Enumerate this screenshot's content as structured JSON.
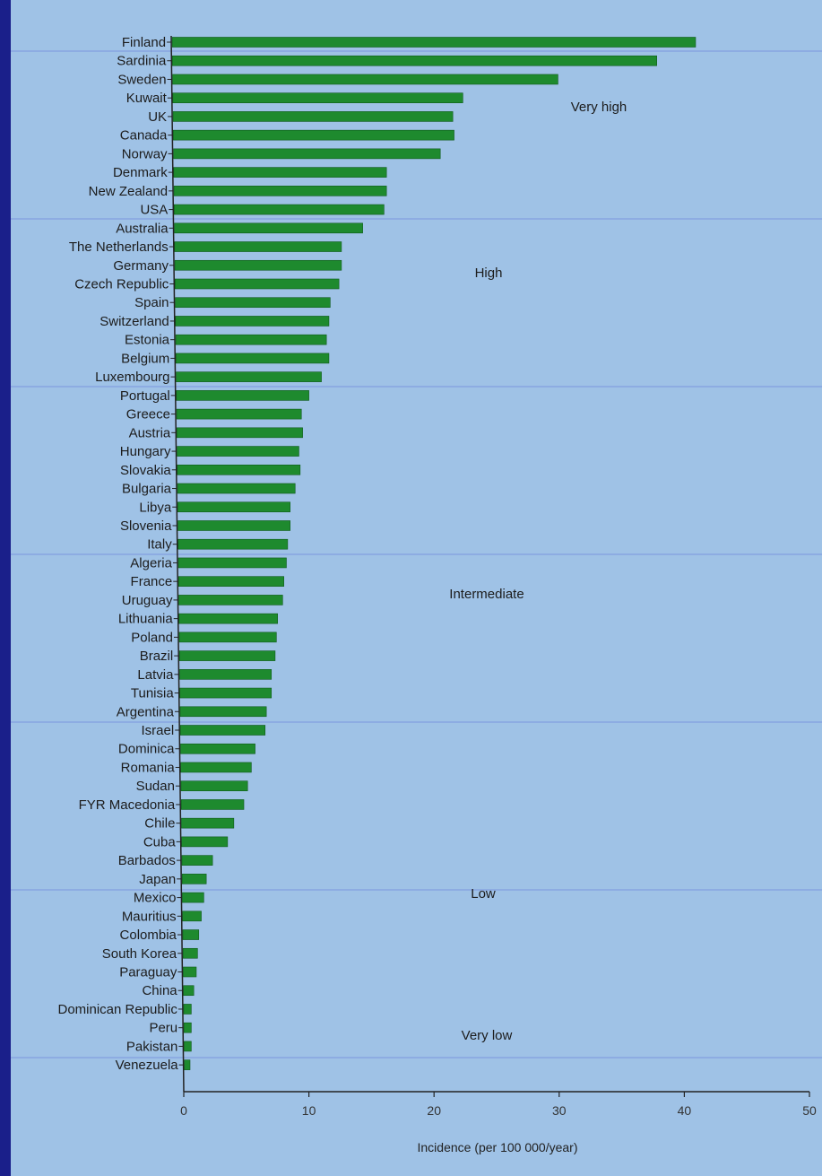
{
  "chart_data": {
    "type": "bar",
    "orientation": "horizontal",
    "categories": [
      "Finland",
      "Sardinia",
      "Sweden",
      "Kuwait",
      "UK",
      "Canada",
      "Norway",
      "Denmark",
      "New Zealand",
      "USA",
      "Australia",
      "The Netherlands",
      "Germany",
      "Czech Republic",
      "Spain",
      "Switzerland",
      "Estonia",
      "Belgium",
      "Luxembourg",
      "Portugal",
      "Greece",
      "Austria",
      "Hungary",
      "Slovakia",
      "Bulgaria",
      "Libya",
      "Slovenia",
      "Italy",
      "Algeria",
      "France",
      "Uruguay",
      "Lithuania",
      "Poland",
      "Brazil",
      "Latvia",
      "Tunisia",
      "Argentina",
      "Israel",
      "Dominica",
      "Romania",
      "Sudan",
      "FYR Macedonia",
      "Chile",
      "Cuba",
      "Barbados",
      "Japan",
      "Mexico",
      "Mauritius",
      "Colombia",
      "South Korea",
      "Paraguay",
      "China",
      "Dominican Republic",
      "Peru",
      "Pakistan",
      "Venezuela"
    ],
    "values": [
      40.9,
      37.8,
      29.9,
      22.3,
      21.5,
      21.6,
      20.5,
      16.2,
      16.2,
      16.0,
      14.3,
      12.6,
      12.6,
      12.4,
      11.7,
      11.6,
      11.4,
      11.6,
      11.0,
      10.0,
      9.4,
      9.5,
      9.2,
      9.3,
      8.9,
      8.5,
      8.5,
      8.3,
      8.2,
      8.0,
      7.9,
      7.5,
      7.4,
      7.3,
      7.0,
      7.0,
      6.6,
      6.5,
      5.7,
      5.4,
      5.1,
      4.8,
      4.0,
      3.5,
      2.3,
      1.8,
      1.6,
      1.4,
      1.2,
      1.1,
      1.0,
      0.8,
      0.6,
      0.6,
      0.6,
      0.5
    ],
    "xlabel": "Incidence (per 100 000/year)",
    "ylabel": "",
    "xlim": [
      0,
      50
    ],
    "xticks": [
      "0",
      "10",
      "20",
      "30",
      "40",
      "50"
    ],
    "annotations": [
      "Very high",
      "High",
      "Intermediate",
      "Low",
      "Very low"
    ],
    "bar_color": "#1e8a2e",
    "grid": false
  }
}
